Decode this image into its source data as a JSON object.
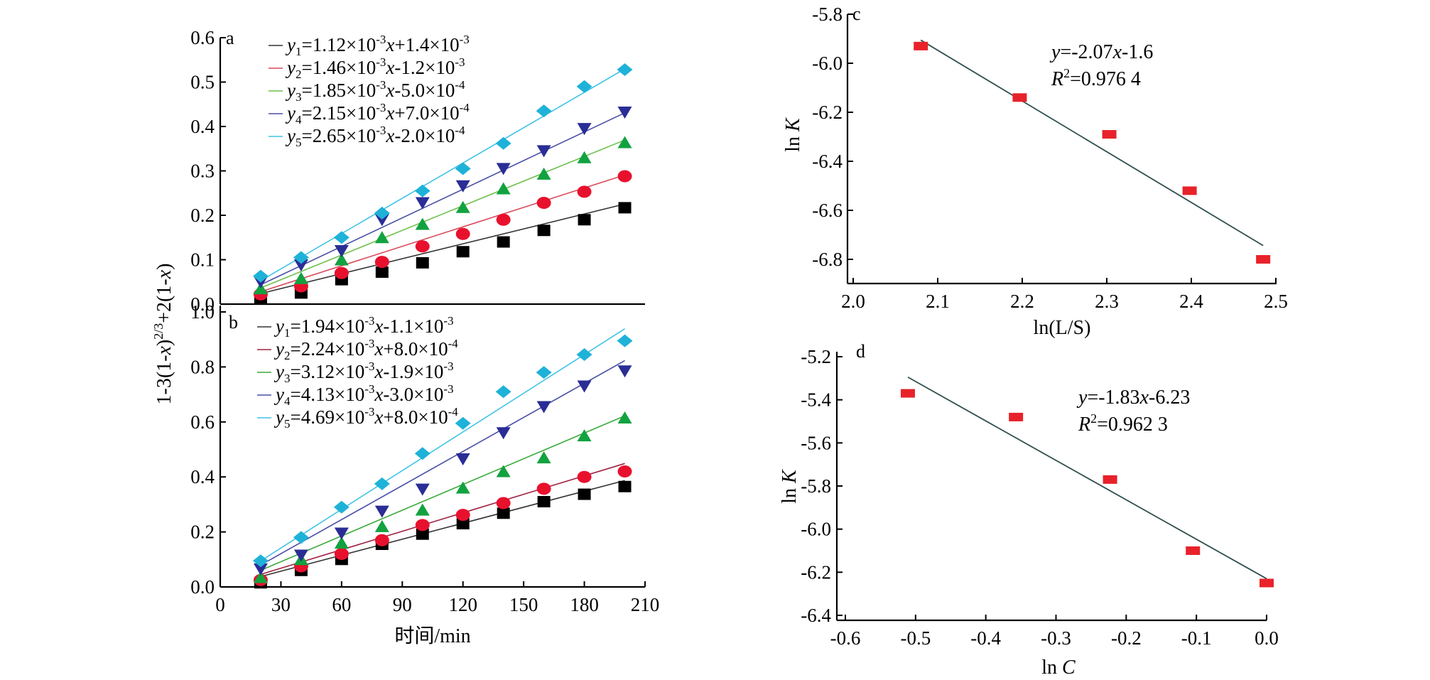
{
  "chart_data": [
    {
      "id": "a",
      "type": "scatter",
      "panel_label": "a",
      "ylabel": "1-3(1-x)2/3+2(1-x)",
      "xlim": [
        0,
        210
      ],
      "ylim": [
        0,
        0.6
      ],
      "yticks": [
        0.0,
        0.1,
        0.2,
        0.3,
        0.4,
        0.5,
        0.6
      ],
      "ytick_labels": [
        "0.0",
        "0.1",
        "0.2",
        "0.3",
        "0.4",
        "0.5",
        "0.6"
      ],
      "x": [
        20,
        40,
        60,
        80,
        100,
        120,
        140,
        160,
        180,
        200
      ],
      "series": [
        {
          "marker": "square",
          "color": "#000000",
          "line_color": "#333333",
          "legend": {
            "yi": "1",
            "a": "=1.12×10",
            "ae": "-3",
            "m": "x",
            "b": "+1.4×10",
            "be": "-3"
          },
          "slope": 0.00112,
          "intercept": 0.0014,
          "values": [
            0.012,
            0.025,
            0.055,
            0.072,
            0.093,
            0.118,
            0.14,
            0.166,
            0.19,
            0.217
          ]
        },
        {
          "marker": "circle",
          "color": "#e8112d",
          "line_color": "#d84a5a",
          "legend": {
            "yi": "2",
            "a": "=1.46×10",
            "ae": "-3",
            "m": "x",
            "b": "-1.2×10",
            "be": "-3"
          },
          "slope": 0.00146,
          "intercept": -0.0012,
          "values": [
            0.022,
            0.04,
            0.07,
            0.095,
            0.13,
            0.158,
            0.19,
            0.228,
            0.253,
            0.288
          ]
        },
        {
          "marker": "triangle-up",
          "color": "#12a23f",
          "line_color": "#6cc04a",
          "legend": {
            "yi": "3",
            "a": "=1.85×10",
            "ae": "-3",
            "m": "x",
            "b": "-5.0×10",
            "be": "-4"
          },
          "slope": 0.00185,
          "intercept": -0.0005,
          "values": [
            0.035,
            0.058,
            0.1,
            0.15,
            0.18,
            0.218,
            0.26,
            0.293,
            0.33,
            0.364
          ]
        },
        {
          "marker": "triangle-down",
          "color": "#2a2d96",
          "line_color": "#4a4fa6",
          "legend": {
            "yi": "4",
            "a": "=2.15×10",
            "ae": "-3",
            "m": "x",
            "b": "+7.0×10",
            "be": "-4"
          },
          "slope": 0.00215,
          "intercept": 0.0007,
          "values": [
            0.05,
            0.088,
            0.12,
            0.19,
            0.228,
            0.266,
            0.305,
            0.345,
            0.395,
            0.432
          ]
        },
        {
          "marker": "diamond",
          "color": "#1fb2d8",
          "line_color": "#3fc3e6",
          "legend": {
            "yi": "5",
            "a": "=2.65×10",
            "ae": "-3",
            "m": "x",
            "b": "-2.0×10",
            "be": "-4"
          },
          "slope": 0.00265,
          "intercept": -0.0002,
          "values": [
            0.063,
            0.105,
            0.15,
            0.205,
            0.255,
            0.305,
            0.362,
            0.435,
            0.49,
            0.528
          ]
        }
      ]
    },
    {
      "id": "b",
      "type": "scatter",
      "panel_label": "b",
      "xlabel": "时间/min",
      "xlim": [
        0,
        210
      ],
      "xticks": [
        0,
        30,
        60,
        90,
        120,
        150,
        180,
        210
      ],
      "xtick_labels": [
        "0",
        "30",
        "60",
        "90",
        "120",
        "150",
        "180",
        "210"
      ],
      "ylim": [
        0,
        1.0
      ],
      "yticks": [
        0.0,
        0.2,
        0.4,
        0.6,
        0.8,
        1.0
      ],
      "ytick_labels": [
        "0.0",
        "0.2",
        "0.4",
        "0.6",
        "0.8",
        "1.0"
      ],
      "x": [
        20,
        40,
        60,
        80,
        100,
        120,
        140,
        160,
        180,
        200
      ],
      "series": [
        {
          "marker": "square",
          "color": "#000000",
          "line_color": "#333333",
          "legend": {
            "yi": "1",
            "a": "=1.94×10",
            "ae": "-3",
            "m": "x",
            "b": "-1.1×10",
            "be": "-3"
          },
          "slope": 0.00194,
          "intercept": -0.0011,
          "values": [
            0.015,
            0.06,
            0.1,
            0.155,
            0.192,
            0.23,
            0.268,
            0.31,
            0.337,
            0.365
          ]
        },
        {
          "marker": "circle",
          "color": "#e8112d",
          "line_color": "#a02040",
          "legend": {
            "yi": "2",
            "a": "=2.24×10",
            "ae": "-3",
            "m": "x",
            "b": "+8.0×10",
            "be": "-4"
          },
          "slope": 0.00224,
          "intercept": 0.0008,
          "values": [
            0.025,
            0.075,
            0.12,
            0.17,
            0.225,
            0.262,
            0.305,
            0.357,
            0.4,
            0.42
          ]
        },
        {
          "marker": "triangle-up",
          "color": "#12a23f",
          "line_color": "#3aaa3a",
          "legend": {
            "yi": "3",
            "a": "=3.12×10",
            "ae": "-3",
            "m": "x",
            "b": "-1.9×10",
            "be": "-3"
          },
          "slope": 0.00312,
          "intercept": -0.0019,
          "values": [
            0.035,
            0.1,
            0.16,
            0.22,
            0.28,
            0.36,
            0.42,
            0.47,
            0.55,
            0.615
          ]
        },
        {
          "marker": "triangle-down",
          "color": "#2a2d96",
          "line_color": "#4a4fa6",
          "legend": {
            "yi": "4",
            "a": "=4.13×10",
            "ae": "-3",
            "m": "x",
            "b": "-3.0×10",
            "be": "-3"
          },
          "slope": 0.00413,
          "intercept": -0.003,
          "values": [
            0.065,
            0.115,
            0.195,
            0.275,
            0.355,
            0.465,
            0.56,
            0.655,
            0.73,
            0.785
          ]
        },
        {
          "marker": "diamond",
          "color": "#1fb2d8",
          "line_color": "#3fc3e6",
          "legend": {
            "yi": "5",
            "a": "=4.69×10",
            "ae": "-3",
            "m": "x",
            "b": "+8.0×10",
            "be": "-4"
          },
          "slope": 0.00469,
          "intercept": 0.0008,
          "values": [
            0.095,
            0.18,
            0.29,
            0.375,
            0.485,
            0.595,
            0.71,
            0.78,
            0.845,
            0.895
          ]
        }
      ]
    },
    {
      "id": "c",
      "type": "scatter",
      "panel_label": "c",
      "xlabel": "ln(L/S)",
      "ylabel_main": "ln ",
      "ylabel_var": "K",
      "xlim": [
        2.0,
        2.5
      ],
      "xticks": [
        2.0,
        2.1,
        2.2,
        2.3,
        2.4,
        2.5
      ],
      "xtick_labels": [
        "2.0",
        "2.1",
        "2.2",
        "2.3",
        "2.4",
        "2.5"
      ],
      "ylim": [
        -6.9,
        -5.8
      ],
      "yticks": [
        -5.8,
        -6.0,
        -6.2,
        -6.4,
        -6.6,
        -6.8
      ],
      "ytick_labels": [
        "-5.8",
        "-6.0",
        "-6.2",
        "-6.4",
        "-6.6",
        "-6.8"
      ],
      "marker": "rect",
      "color": "#e8222a",
      "points": [
        [
          2.08,
          -5.93
        ],
        [
          2.197,
          -6.14
        ],
        [
          2.303,
          -6.29
        ],
        [
          2.398,
          -6.52
        ],
        [
          2.485,
          -6.8
        ]
      ],
      "fit": {
        "slope": -2.07,
        "intercept": -1.6,
        "x_range": [
          2.08,
          2.485
        ]
      },
      "annotation": {
        "eq_y": "y",
        "eq_rest": "=-2.07",
        "eq_x": "x",
        "eq_tail": "-1.6",
        "r2_r": "R",
        "r2_sup": "2",
        "r2_val": "=0.976 4"
      }
    },
    {
      "id": "d",
      "type": "scatter",
      "panel_label": "d",
      "xlabel_main": "ln ",
      "xlabel_var": "C",
      "ylabel_main": "ln ",
      "ylabel_var": "K",
      "xlim": [
        -0.6,
        0.0
      ],
      "xticks": [
        -0.6,
        -0.5,
        -0.4,
        -0.3,
        -0.2,
        -0.1,
        0.0
      ],
      "xtick_labels": [
        "-0.6",
        "-0.5",
        "-0.4",
        "-0.3",
        "-0.2",
        "-0.1",
        "0.0"
      ],
      "ylim": [
        -6.4,
        -5.2
      ],
      "yticks": [
        -5.2,
        -5.4,
        -5.6,
        -5.8,
        -6.0,
        -6.2,
        -6.4
      ],
      "ytick_labels": [
        "-5.2",
        "-5.4",
        "-5.6",
        "-5.8",
        "-6.0",
        "-6.2",
        "-6.4"
      ],
      "marker": "rect",
      "color": "#e8222a",
      "points": [
        [
          -0.511,
          -5.37
        ],
        [
          -0.357,
          -5.48
        ],
        [
          -0.223,
          -5.77
        ],
        [
          -0.105,
          -6.1
        ],
        [
          0.0,
          -6.25
        ]
      ],
      "fit": {
        "slope": -1.83,
        "intercept": -6.23,
        "x_range": [
          -0.511,
          0.0
        ]
      },
      "annotation": {
        "eq_y": "y",
        "eq_rest": "=-1.83",
        "eq_x": "x",
        "eq_tail": "-6.23",
        "r2_r": "R",
        "r2_sup": "2",
        "r2_val": "=0.962 3"
      }
    }
  ]
}
